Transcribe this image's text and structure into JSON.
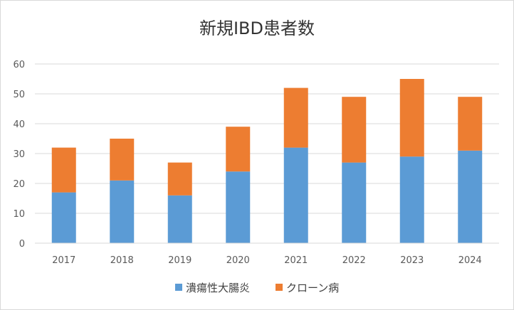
{
  "chart_data": {
    "type": "bar",
    "stacked": true,
    "title": "新規IBD患者数",
    "categories": [
      "2017",
      "2018",
      "2019",
      "2020",
      "2021",
      "2022",
      "2023",
      "2024"
    ],
    "series": [
      {
        "name": "潰瘍性大腸炎",
        "values": [
          17,
          21,
          16,
          24,
          32,
          27,
          29,
          31
        ],
        "color": "#5b9bd5"
      },
      {
        "name": "クローン病",
        "values": [
          15,
          14,
          11,
          15,
          20,
          22,
          26,
          18
        ],
        "color": "#ed7d31"
      }
    ],
    "ylim": [
      0,
      60
    ],
    "yticks": [
      "0",
      "10",
      "20",
      "30",
      "40",
      "50",
      "60"
    ],
    "grid": true,
    "gridColor": "#d9d9d9",
    "legend": "bottom"
  }
}
